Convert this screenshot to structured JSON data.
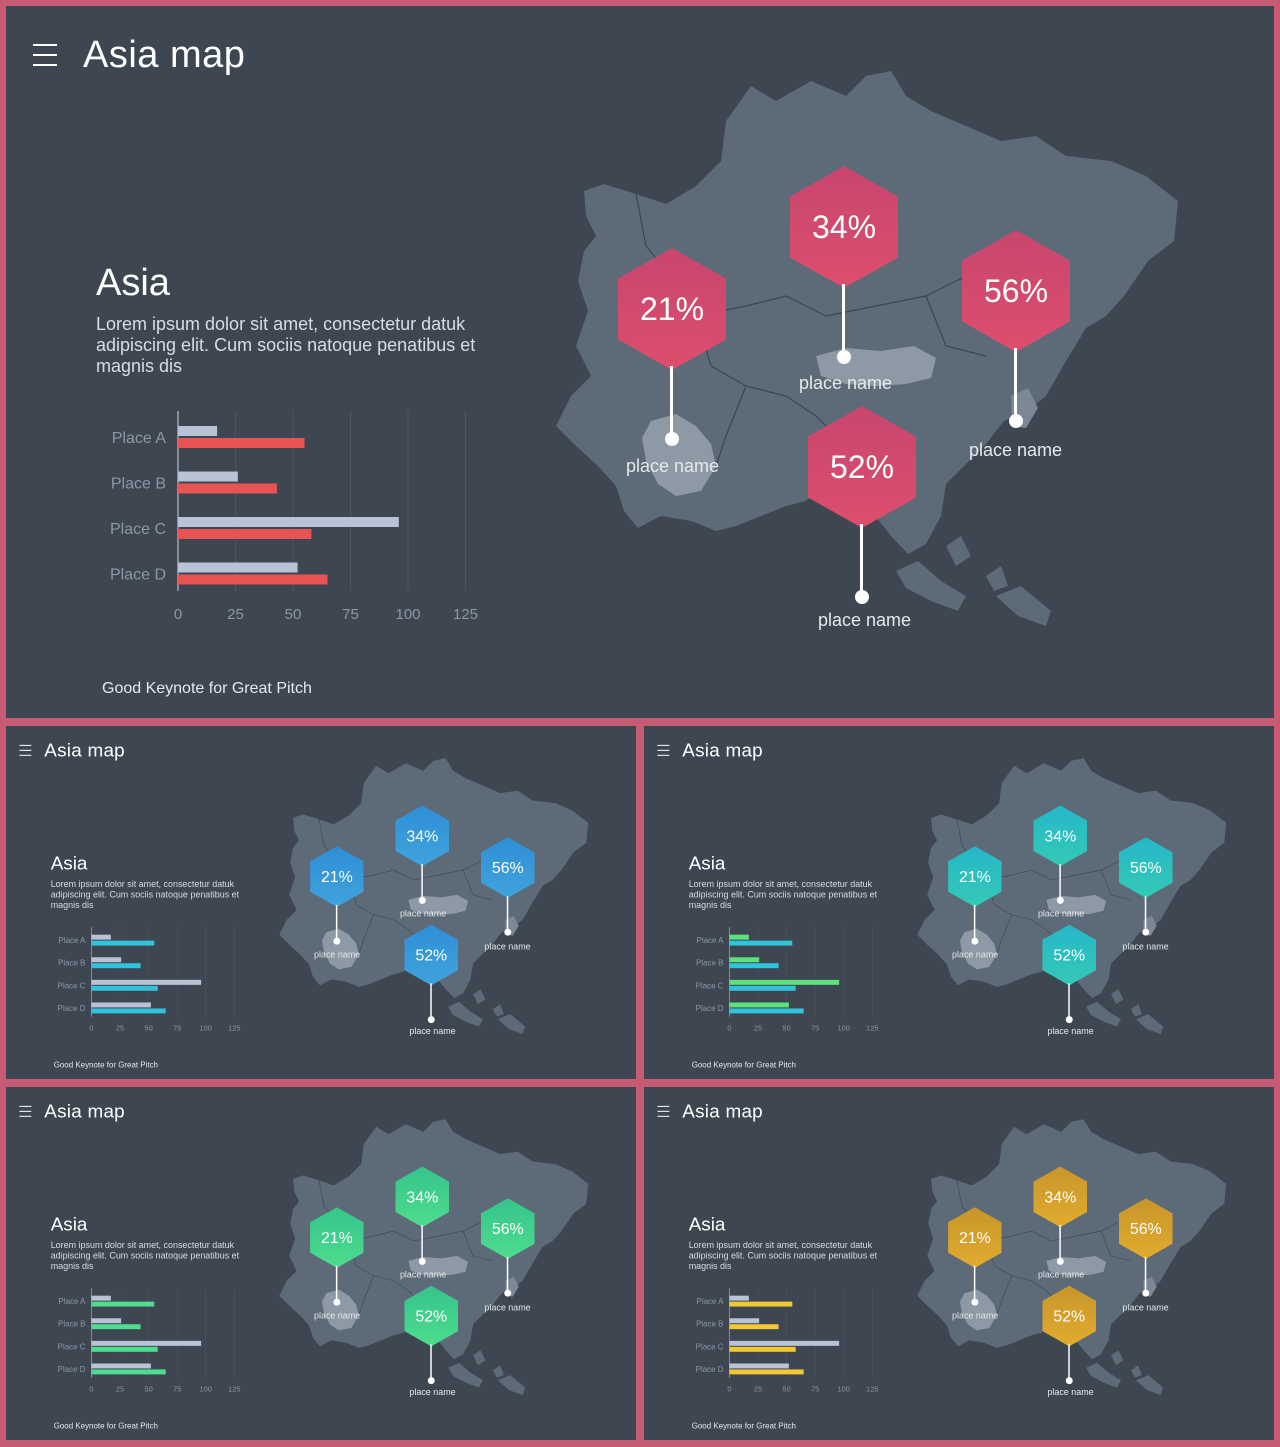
{
  "slide": {
    "title": "Asia map",
    "heading": "Asia",
    "body": "Lorem ipsum dolor sit amet, consectetur datuk adipiscing elit. Cum sociis natoque penatibus et magnis dis",
    "footer": "Good Keynote for Great Pitch"
  },
  "markers": [
    {
      "value": "21%",
      "label": "place name"
    },
    {
      "value": "34%",
      "label": "place name"
    },
    {
      "value": "56%",
      "label": "place name"
    },
    {
      "value": "52%",
      "label": "place name"
    }
  ],
  "themes": [
    {
      "name": "red",
      "hex_top": "#c8466e",
      "hex_bottom": "#dc4e6d",
      "bar": "#e85454",
      "bar2": "#b8c3d6"
    },
    {
      "name": "blue",
      "hex_top": "#2e8fd6",
      "hex_bottom": "#40a3db",
      "bar": "#32c3dc",
      "bar2": "#b8c3d6"
    },
    {
      "name": "teal",
      "hex_top": "#26b7c9",
      "hex_bottom": "#34c9b5",
      "bar": "#32c3dc",
      "bar2": "#5ee07a"
    },
    {
      "name": "green",
      "hex_top": "#35c48c",
      "hex_bottom": "#4fdc8e",
      "bar": "#4fdc8e",
      "bar2": "#b8c3d6"
    },
    {
      "name": "gold",
      "hex_top": "#c9952a",
      "hex_bottom": "#e0ac2f",
      "bar": "#f2c935",
      "bar2": "#b8c3d6"
    }
  ],
  "chart_data": {
    "type": "bar",
    "orientation": "horizontal",
    "categories": [
      "Place A",
      "Place B",
      "Place C",
      "Place D"
    ],
    "series": [
      {
        "values": [
          17,
          26,
          96,
          52
        ]
      },
      {
        "values": [
          55,
          43,
          58,
          65
        ]
      }
    ],
    "xlim": [
      0,
      125
    ],
    "xticks": [
      "0",
      "25",
      "50",
      "75",
      "100",
      "125"
    ],
    "grid": true
  }
}
